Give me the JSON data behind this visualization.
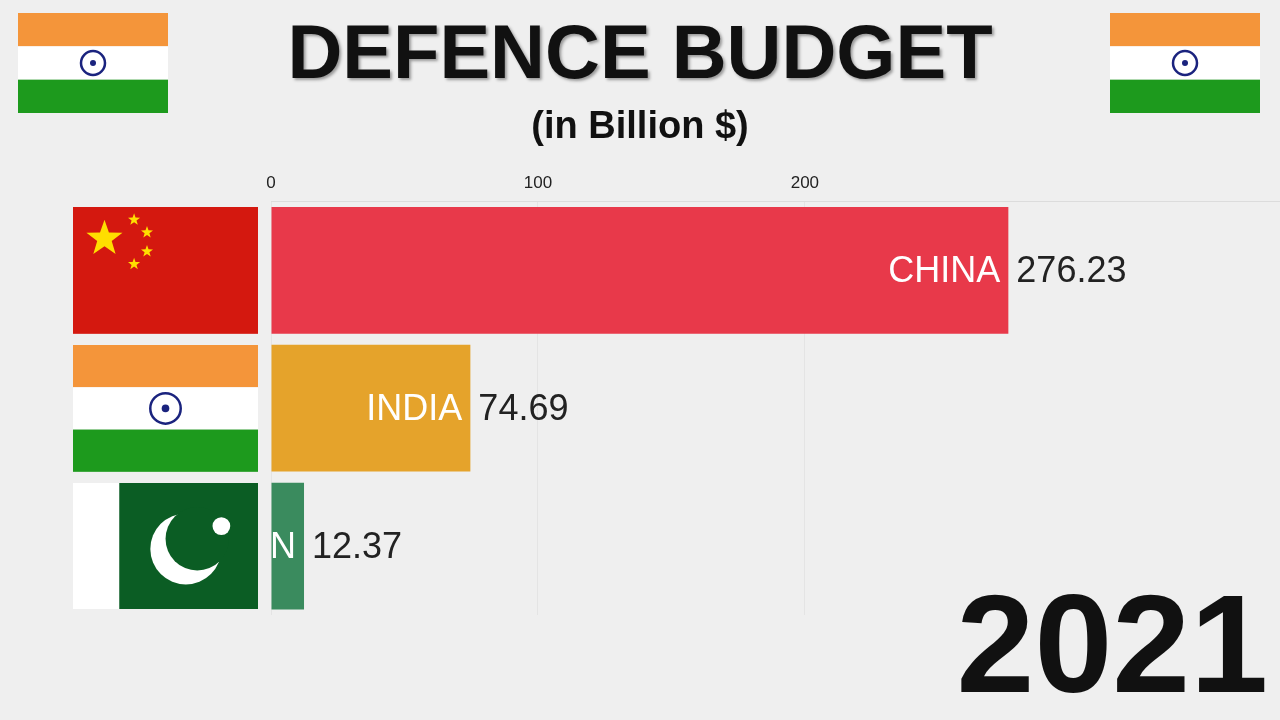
{
  "chart_data": {
    "type": "bar",
    "orientation": "horizontal",
    "title": "DEFENCE BUDGET",
    "subtitle": "(in Billion $)",
    "categories": [
      "CHINA",
      "INDIA",
      "N"
    ],
    "values": [
      276.23,
      74.69,
      12.37
    ],
    "colors": [
      "#e8394a",
      "#e5a32b",
      "#3a8b5e"
    ],
    "xlim": [
      0,
      378
    ],
    "xticks": [
      0,
      100,
      200
    ],
    "grid": "x",
    "data_labels": true,
    "legend": false,
    "annotations": [
      "2021"
    ]
  }
}
